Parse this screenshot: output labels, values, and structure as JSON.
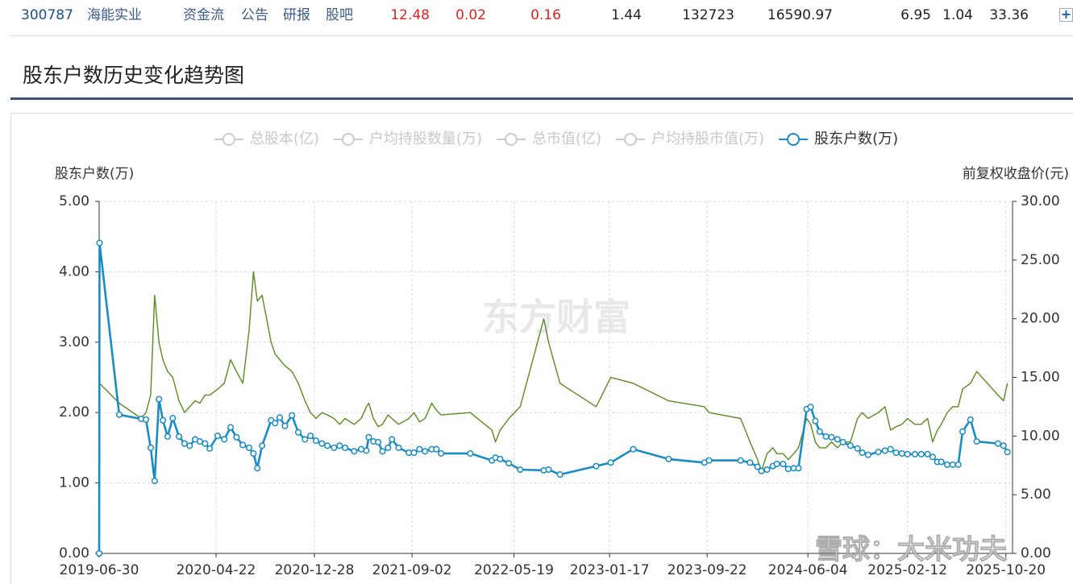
{
  "stock_row": {
    "code": "300787",
    "name": "海能实业",
    "links": [
      "资金流",
      "公告",
      "研报",
      "股吧"
    ],
    "values": [
      12.48,
      0.02,
      0.16,
      1.44,
      132723,
      16590.97,
      6.95,
      1.04,
      33.36
    ]
  },
  "section_title": "股东户数历史变化趋势图",
  "chart_data": {
    "type": "line",
    "y_label": "股东户数(万)",
    "y2_label": "前复权收盘价(元)",
    "watermarks": [
      "东方财富",
      "雪球：大米功夫"
    ],
    "grid": true,
    "xlim": [
      "2019-06-30",
      "2025-11-06"
    ],
    "xticks": [
      "2019-06-30",
      "2020-04-22",
      "2020-12-28",
      "2021-09-02",
      "2022-05-19",
      "2023-01-17",
      "2023-09-22",
      "2024-06-04",
      "2025-02-12",
      "2025-10-20"
    ],
    "ylim": [
      0,
      5
    ],
    "yticks": [
      {
        "value": 0,
        "label": "0.00"
      },
      {
        "value": 1,
        "label": "1.00"
      },
      {
        "value": 2,
        "label": "2.00"
      },
      {
        "value": 3,
        "label": "3.00"
      },
      {
        "value": 4,
        "label": "4.00"
      },
      {
        "value": 5,
        "label": "5.00"
      }
    ],
    "y2lim": [
      0,
      30
    ],
    "y2ticks": [
      {
        "value": 0,
        "label": "0.00"
      },
      {
        "value": 5,
        "label": "5.00"
      },
      {
        "value": 10,
        "label": "10.00"
      },
      {
        "value": 15,
        "label": "15.00"
      },
      {
        "value": 20,
        "label": "20.00"
      },
      {
        "value": 25,
        "label": "25.00"
      },
      {
        "value": 30,
        "label": "30.00"
      }
    ],
    "x": [
      "2019-06-30",
      "2019-07-01",
      "2019-08-20",
      "2019-10-15",
      "2019-10-27",
      "2019-11-08",
      "2019-11-18",
      "2019-11-29",
      "2019-12-09",
      "2019-12-21",
      "2020-01-03",
      "2020-01-19",
      "2020-02-02",
      "2020-02-15",
      "2020-02-29",
      "2020-03-12",
      "2020-03-25",
      "2020-04-06",
      "2020-04-26",
      "2020-05-13",
      "2020-05-29",
      "2020-06-13",
      "2020-06-29",
      "2020-07-15",
      "2020-07-26",
      "2020-08-05",
      "2020-08-17",
      "2020-09-09",
      "2020-09-19",
      "2020-10-01",
      "2020-10-14",
      "2020-11-01",
      "2020-11-17",
      "2020-12-04",
      "2020-12-18",
      "2021-01-01",
      "2021-01-16",
      "2021-01-30",
      "2021-02-16",
      "2021-03-02",
      "2021-03-16",
      "2021-04-08",
      "2021-04-26",
      "2021-05-09",
      "2021-05-15",
      "2021-05-27",
      "2021-06-08",
      "2021-06-19",
      "2021-07-03",
      "2021-07-13",
      "2021-07-30",
      "2021-08-25",
      "2021-09-07",
      "2021-09-21",
      "2021-10-05",
      "2021-10-22",
      "2021-11-03",
      "2021-11-15",
      "2022-01-28",
      "2022-03-24",
      "2022-04-02",
      "2022-04-14",
      "2022-05-06",
      "2022-06-04",
      "2022-08-03",
      "2022-08-15",
      "2022-09-13",
      "2022-12-14",
      "2023-01-20",
      "2023-03-18",
      "2023-06-16",
      "2023-09-15",
      "2023-09-27",
      "2023-12-16",
      "2024-01-09",
      "2024-01-28",
      "2024-02-07",
      "2024-02-21",
      "2024-03-07",
      "2024-03-17",
      "2024-04-02",
      "2024-04-15",
      "2024-04-29",
      "2024-05-11",
      "2024-06-01",
      "2024-06-11",
      "2024-06-23",
      "2024-07-04",
      "2024-07-20",
      "2024-08-03",
      "2024-08-18",
      "2024-09-01",
      "2024-09-20",
      "2024-10-08",
      "2024-10-20",
      "2024-11-04",
      "2024-11-30",
      "2024-12-17",
      "2024-12-31",
      "2025-01-14",
      "2025-01-29",
      "2025-02-12",
      "2025-03-03",
      "2025-03-19",
      "2025-04-04",
      "2025-04-17",
      "2025-04-29",
      "2025-05-09",
      "2025-05-24",
      "2025-06-07",
      "2025-06-21",
      "2025-07-02",
      "2025-07-22",
      "2025-08-07",
      "2025-09-30",
      "2025-10-14",
      "2025-10-24"
    ],
    "series": [
      {
        "name": "总股本(亿)",
        "visible": false,
        "color": "#cccccc"
      },
      {
        "name": "户均持股数量(万)",
        "visible": false,
        "color": "#cccccc"
      },
      {
        "name": "总市值(亿)",
        "visible": false,
        "color": "#cccccc"
      },
      {
        "name": "户均持股市值(万)",
        "visible": false,
        "color": "#cccccc"
      },
      {
        "name": "股东户数(万)",
        "visible": true,
        "color": "#1a8cc4",
        "values": [
          0.0,
          4.41,
          1.97,
          1.91,
          1.9,
          1.5,
          1.03,
          2.19,
          1.89,
          1.66,
          1.92,
          1.66,
          1.56,
          1.53,
          1.62,
          1.59,
          1.56,
          1.49,
          1.67,
          1.62,
          1.79,
          1.65,
          1.54,
          1.5,
          1.42,
          1.21,
          1.53,
          1.89,
          1.85,
          1.93,
          1.81,
          1.96,
          1.72,
          1.62,
          1.67,
          1.6,
          1.56,
          1.53,
          1.5,
          1.53,
          1.5,
          1.45,
          1.48,
          1.46,
          1.65,
          1.59,
          1.58,
          1.45,
          1.5,
          1.62,
          1.5,
          1.43,
          1.43,
          1.48,
          1.45,
          1.48,
          1.48,
          1.42,
          1.42,
          1.32,
          1.36,
          1.34,
          1.28,
          1.19,
          1.18,
          1.19,
          1.12,
          1.24,
          1.29,
          1.48,
          1.34,
          1.29,
          1.32,
          1.32,
          1.29,
          1.23,
          1.17,
          1.19,
          1.24,
          1.27,
          1.27,
          1.2,
          1.21,
          1.21,
          2.05,
          2.08,
          1.88,
          1.73,
          1.66,
          1.65,
          1.62,
          1.58,
          1.53,
          1.49,
          1.43,
          1.4,
          1.44,
          1.46,
          1.48,
          1.43,
          1.42,
          1.41,
          1.41,
          1.41,
          1.41,
          1.37,
          1.3,
          1.3,
          1.26,
          1.26,
          1.26,
          1.73,
          1.9,
          1.59,
          1.56,
          1.53,
          1.44
        ]
      },
      {
        "axis": "y2",
        "color": "#5c8a1e",
        "values": [
          null,
          14.5,
          12.8,
          11.5,
          12.0,
          13.5,
          22.0,
          18.0,
          16.5,
          15.5,
          15.0,
          13.0,
          12.0,
          12.5,
          13.0,
          12.8,
          13.5,
          13.5,
          14.0,
          14.5,
          16.5,
          15.5,
          14.5,
          19.0,
          24.0,
          21.5,
          22.0,
          18.0,
          17.0,
          16.5,
          16.0,
          15.5,
          14.5,
          13.0,
          12.0,
          11.5,
          12.0,
          11.8,
          11.5,
          11.0,
          11.5,
          11.0,
          11.5,
          12.5,
          12.8,
          11.5,
          10.8,
          11.0,
          11.8,
          11.5,
          11.0,
          11.5,
          12.0,
          11.2,
          11.5,
          12.8,
          12.2,
          11.8,
          12.0,
          10.5,
          9.5,
          10.5,
          11.5,
          12.5,
          20.0,
          18.0,
          14.5,
          12.5,
          15.0,
          14.5,
          13.0,
          12.5,
          12.0,
          11.5,
          9.5,
          8.0,
          7.0,
          8.5,
          9.0,
          8.5,
          8.5,
          8.0,
          8.5,
          9.0,
          11.5,
          11.0,
          9.5,
          9.0,
          9.0,
          9.5,
          9.0,
          9.5,
          9.5,
          11.5,
          12.0,
          11.5,
          12.0,
          12.5,
          10.5,
          10.8,
          11.0,
          11.5,
          11.0,
          11.0,
          11.5,
          9.5,
          10.5,
          11.0,
          12.0,
          12.5,
          12.5,
          14.0,
          14.5,
          15.5,
          13.5,
          13.0,
          14.5
        ]
      }
    ]
  }
}
